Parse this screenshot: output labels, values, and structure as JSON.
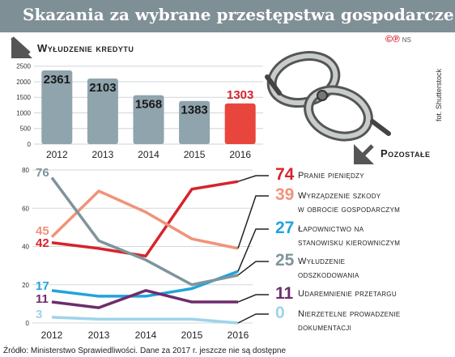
{
  "title": "Skazania za wybrane przestępstwa gospodarcze",
  "badge": {
    "symbols": "©℗",
    "agency": "NS"
  },
  "photo_credit": "fot. Shutterstock",
  "source": "Źródło: Ministerstwo Sprawiedliwości. Dane za 2017 r. jeszcze nie są dostępne",
  "colors": {
    "bar": "#8fa4ad",
    "bar_highlight": "#e8453c",
    "header": "#7f8f96",
    "accent_red": "#d7232b"
  },
  "chart_data": [
    {
      "type": "bar",
      "title": "Wyłudzenie kredytu",
      "categories": [
        "2012",
        "2013",
        "2014",
        "2015",
        "2016"
      ],
      "values": [
        2361,
        2103,
        1568,
        1383,
        1303
      ],
      "data_labels": [
        "2361",
        "2103",
        "1568",
        "1383",
        "1303"
      ],
      "highlight_index": 4,
      "yticks": [
        "0",
        "500",
        "1000",
        "1500",
        "2000",
        "2500"
      ],
      "ylim": [
        0,
        2700
      ],
      "grid": true
    },
    {
      "type": "line",
      "title": "Pozostałe",
      "x": [
        "2012",
        "2013",
        "2014",
        "2015",
        "2016"
      ],
      "yticks": [
        "0",
        "20",
        "40",
        "60",
        "80"
      ],
      "ylim": [
        0,
        80
      ],
      "grid": true,
      "series": [
        {
          "name": "Pranie pieniędzy",
          "values": [
            42,
            39,
            35,
            70,
            74
          ],
          "start_label": "42",
          "end_label": "74",
          "color": "#d7232b"
        },
        {
          "name": "Wyrządzenie szkody w obrocie gospodarczym",
          "values": [
            45,
            69,
            58,
            44,
            39
          ],
          "start_label": "45",
          "end_label": "39",
          "color": "#f0937a"
        },
        {
          "name": "Łapownictwo na stanowisku kierowniczym",
          "values": [
            17,
            14,
            14,
            18,
            27
          ],
          "start_label": "17",
          "end_label": "27",
          "color": "#22a3dc"
        },
        {
          "name": "Wyłudzenie odszkodowania",
          "values": [
            76,
            43,
            33,
            20,
            25
          ],
          "start_label": "76",
          "end_label": "25",
          "color": "#7f949c"
        },
        {
          "name": "Udaremnienie przetargu",
          "values": [
            11,
            8,
            17,
            11,
            11
          ],
          "start_label": "11",
          "end_label": "11",
          "color": "#6e2c6b"
        },
        {
          "name": "Nierzetelne prowadzenie dokumentacji",
          "values": [
            3,
            2,
            2,
            2,
            0
          ],
          "start_label": "3",
          "end_label": "0",
          "color": "#9fd3ea"
        }
      ]
    }
  ]
}
